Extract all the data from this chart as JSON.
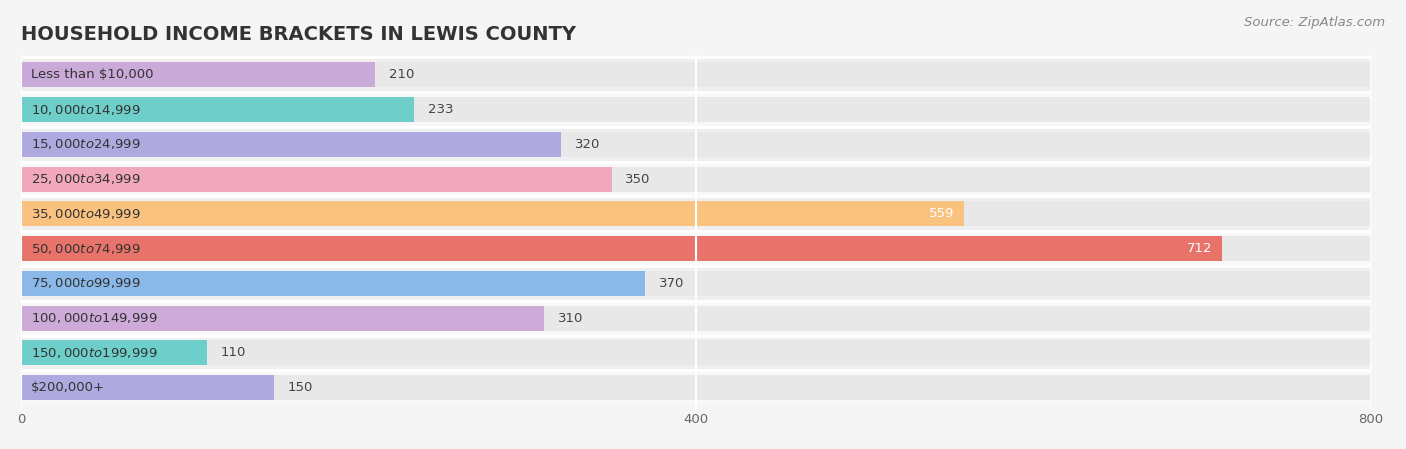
{
  "title": "HOUSEHOLD INCOME BRACKETS IN LEWIS COUNTY",
  "source": "Source: ZipAtlas.com",
  "categories": [
    "Less than $10,000",
    "$10,000 to $14,999",
    "$15,000 to $24,999",
    "$25,000 to $34,999",
    "$35,000 to $49,999",
    "$50,000 to $74,999",
    "$75,000 to $99,999",
    "$100,000 to $149,999",
    "$150,000 to $199,999",
    "$200,000+"
  ],
  "values": [
    210,
    233,
    320,
    350,
    559,
    712,
    370,
    310,
    110,
    150
  ],
  "bar_colors": [
    "#c9aad8",
    "#6ecfca",
    "#aeaadf",
    "#f2a8bc",
    "#f9c27e",
    "#e8736a",
    "#8ab8e8",
    "#ceaad8",
    "#6ecfca",
    "#aeaadf"
  ],
  "bg_color": "#f5f5f5",
  "bar_bg_color": "#e8e8e8",
  "xlim": [
    0,
    800
  ],
  "xticks": [
    0,
    400,
    800
  ],
  "title_fontsize": 14,
  "label_fontsize": 9.5,
  "value_fontsize": 9.5,
  "source_fontsize": 9.5,
  "bar_height": 0.72,
  "row_sep_color": "#ffffff"
}
